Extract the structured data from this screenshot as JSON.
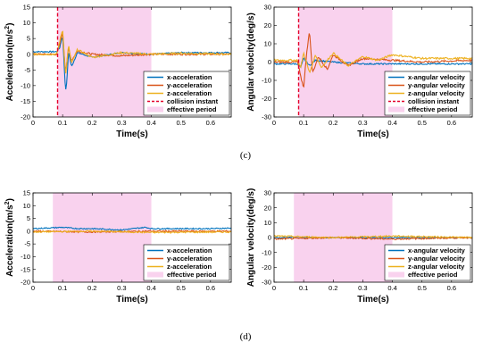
{
  "captions": [
    "(c)",
    "(d)"
  ],
  "colors": {
    "x": "#0072BD",
    "y": "#D95319",
    "z": "#EDB120",
    "collision": "#E4002B",
    "effective": "#F9D2EE"
  },
  "chart_data": [
    {
      "type": "line",
      "panel": "c-acc",
      "xlabel": "Time(s)",
      "ylabel": "Acceleration(m/s",
      "ylabel_sup": "2",
      "ylabel_end": ")",
      "xlim": [
        0,
        0.67
      ],
      "ylim": [
        -20,
        15
      ],
      "xticks": [
        "0",
        "0.1",
        "0.2",
        "0.3",
        "0.4",
        "0.5",
        "0.6"
      ],
      "yticks": [
        "15",
        "10",
        "5",
        "0",
        "-5",
        "-10",
        "-15",
        "-20"
      ],
      "collision": 0.083,
      "effective": [
        0.083,
        0.4
      ],
      "series": [
        {
          "name": "x-acceleration",
          "key": "x",
          "x": [
            0,
            0.08,
            0.09,
            0.1,
            0.105,
            0.11,
            0.115,
            0.12,
            0.13,
            0.15,
            0.2,
            0.3,
            0.4,
            0.5,
            0.67
          ],
          "y": [
            0.8,
            0.8,
            2,
            6,
            -3,
            -12,
            -8,
            1,
            -4,
            0.5,
            -1,
            0.5,
            0,
            0.5,
            0.5
          ]
        },
        {
          "name": "y-acceleration",
          "key": "y",
          "x": [
            0,
            0.08,
            0.09,
            0.1,
            0.11,
            0.12,
            0.13,
            0.15,
            0.2,
            0.3,
            0.4,
            0.5,
            0.67
          ],
          "y": [
            0,
            0,
            3,
            7,
            -6,
            2,
            -2,
            1,
            0,
            -0.5,
            0,
            0,
            0
          ]
        },
        {
          "name": "z-acceleration",
          "key": "z",
          "x": [
            0,
            0.08,
            0.09,
            0.1,
            0.11,
            0.12,
            0.13,
            0.15,
            0.2,
            0.3,
            0.4,
            0.5,
            0.67
          ],
          "y": [
            0,
            0,
            4,
            8,
            -7,
            3,
            -3,
            1.5,
            -1,
            0.5,
            0,
            0.3,
            0
          ]
        }
      ],
      "legend_collision": "collision instant",
      "legend_effective": "effective period",
      "legend_loc": "lower-right"
    },
    {
      "type": "line",
      "panel": "c-ang",
      "xlabel": "Time(s)",
      "ylabel": "Angular velocity(deg/s)",
      "xlim": [
        0,
        0.67
      ],
      "ylim": [
        -30,
        30
      ],
      "xticks": [
        "0",
        "0.1",
        "0.2",
        "0.3",
        "0.4",
        "0.5",
        "0.6"
      ],
      "yticks": [
        "30",
        "20",
        "10",
        "0",
        "-10",
        "-20",
        "-30"
      ],
      "collision": 0.083,
      "effective": [
        0.083,
        0.4
      ],
      "series": [
        {
          "name": "x-angular velocity",
          "key": "x",
          "x": [
            0,
            0.08,
            0.09,
            0.1,
            0.12,
            0.14,
            0.2,
            0.3,
            0.4,
            0.5,
            0.67
          ],
          "y": [
            -1,
            -1,
            -3,
            2,
            -2,
            1,
            0,
            -1,
            -1,
            -1,
            -1
          ]
        },
        {
          "name": "y-angular velocity",
          "key": "y",
          "x": [
            0,
            0.08,
            0.09,
            0.1,
            0.11,
            0.12,
            0.13,
            0.15,
            0.18,
            0.2,
            0.25,
            0.3,
            0.4,
            0.5,
            0.67
          ],
          "y": [
            0,
            0,
            -8,
            -14,
            5,
            17,
            -6,
            3,
            -4,
            4,
            -2,
            2,
            1,
            0,
            1
          ]
        },
        {
          "name": "z-angular velocity",
          "key": "z",
          "x": [
            0,
            0.08,
            0.09,
            0.1,
            0.12,
            0.14,
            0.16,
            0.2,
            0.25,
            0.3,
            0.35,
            0.4,
            0.5,
            0.67
          ],
          "y": [
            1,
            1,
            -3,
            5,
            -6,
            4,
            -3,
            5,
            -2,
            3,
            1,
            4,
            2,
            2
          ]
        }
      ],
      "legend_collision": "collision instant",
      "legend_effective": "effective period",
      "legend_loc": "lower-right"
    },
    {
      "type": "line",
      "panel": "d-acc",
      "xlabel": "Time(s)",
      "ylabel": "Acceleration(m/s",
      "ylabel_sup": "2",
      "ylabel_end": ")",
      "xlim": [
        0,
        0.67
      ],
      "ylim": [
        -20,
        15
      ],
      "xticks": [
        "0",
        "0.1",
        "0.2",
        "0.3",
        "0.4",
        "0.5",
        "0.6"
      ],
      "yticks": [
        "15",
        "10",
        "5",
        "0",
        "-5",
        "-10",
        "-15",
        "-20"
      ],
      "effective": [
        0.067,
        0.4
      ],
      "series": [
        {
          "name": "x-acceleration",
          "key": "x",
          "x": [
            0,
            0.1,
            0.15,
            0.2,
            0.3,
            0.38,
            0.4,
            0.5,
            0.6,
            0.67
          ],
          "y": [
            1,
            1.5,
            1,
            1,
            0.5,
            1.5,
            1,
            1,
            1,
            1.2
          ]
        },
        {
          "name": "y-acceleration",
          "key": "y",
          "x": [
            0,
            0.2,
            0.4,
            0.67
          ],
          "y": [
            0,
            -0.3,
            0,
            0
          ]
        },
        {
          "name": "z-acceleration",
          "key": "z",
          "x": [
            0,
            0.2,
            0.4,
            0.67
          ],
          "y": [
            -0.3,
            0,
            -0.5,
            -0.3
          ]
        }
      ],
      "legend_effective": "effective period",
      "legend_loc": "lower-right"
    },
    {
      "type": "line",
      "panel": "d-ang",
      "xlabel": "Time(s)",
      "ylabel": "Angular velocity(deg/s)",
      "xlim": [
        0,
        0.67
      ],
      "ylim": [
        -30,
        30
      ],
      "xticks": [
        "0",
        "0.1",
        "0.2",
        "0.3",
        "0.4",
        "0.5",
        "0.6"
      ],
      "yticks": [
        "30",
        "20",
        "10",
        "0",
        "-10",
        "-20",
        "-30"
      ],
      "effective": [
        0.067,
        0.4
      ],
      "series": [
        {
          "name": "x-angular velocity",
          "key": "x",
          "x": [
            0,
            0.2,
            0.4,
            0.67
          ],
          "y": [
            0,
            0,
            0,
            0
          ]
        },
        {
          "name": "y-angular velocity",
          "key": "y",
          "x": [
            0,
            0.2,
            0.4,
            0.67
          ],
          "y": [
            -1,
            0,
            -1,
            0
          ]
        },
        {
          "name": "z-angular velocity",
          "key": "z",
          "x": [
            0,
            0.2,
            0.4,
            0.67
          ],
          "y": [
            1,
            0,
            1,
            0
          ]
        }
      ],
      "legend_effective": "effective period",
      "legend_loc": "lower-right"
    }
  ]
}
